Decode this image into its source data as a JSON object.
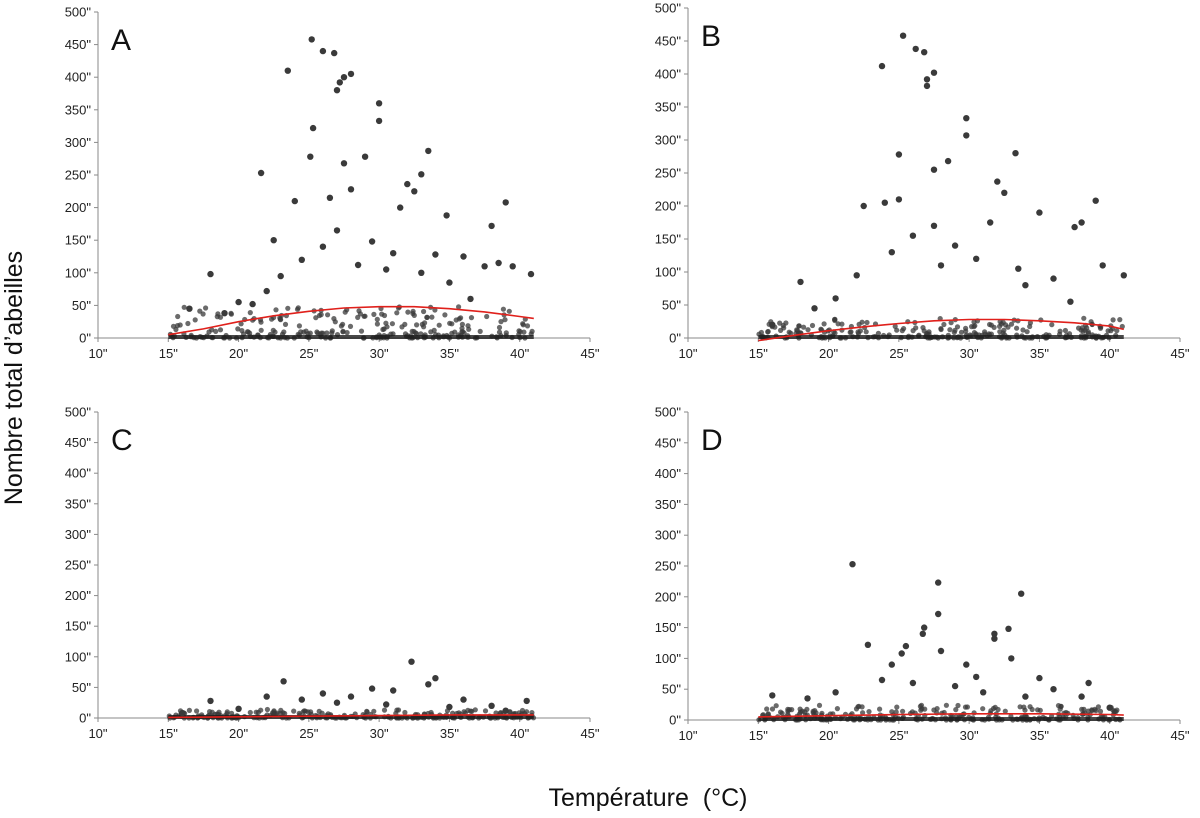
{
  "figure": {
    "ylabel": "Nombre total d’abeilles",
    "xlabel": "Température  (°C)"
  },
  "chart_data": [
    {
      "panel": "A",
      "type": "scatter",
      "xlim": [
        10,
        45
      ],
      "ylim": [
        0,
        500
      ],
      "x_ticks": [
        10,
        15,
        20,
        25,
        30,
        35,
        40,
        45
      ],
      "y_ticks": [
        0,
        50,
        100,
        150,
        200,
        250,
        300,
        350,
        400,
        450,
        500
      ],
      "x_tick_labels": [
        "10\"",
        "15\"",
        "20\"",
        "25\"",
        "30\"",
        "35\"",
        "40\"",
        "45\""
      ],
      "y_tick_labels": [
        "0\"",
        "50\"",
        "100\"",
        "150\"",
        "200\"",
        "250\"",
        "300\"",
        "350\"",
        "400\"",
        "450\"",
        "500\""
      ],
      "grid": false,
      "point_color": "#3a3a3a",
      "trend_color": "#e0201b",
      "trend": {
        "x": [
          15,
          17.5,
          20,
          22.5,
          25,
          27.5,
          30,
          32.5,
          35,
          37.5,
          40,
          41
        ],
        "y": [
          5,
          14,
          25,
          34,
          41,
          46,
          48,
          48,
          45,
          40,
          33,
          30
        ]
      },
      "points": [
        [
          25.2,
          458
        ],
        [
          23.5,
          410
        ],
        [
          26,
          440
        ],
        [
          26.8,
          437
        ],
        [
          27.5,
          400
        ],
        [
          28,
          405
        ],
        [
          27.2,
          392
        ],
        [
          27,
          380
        ],
        [
          30,
          360
        ],
        [
          30,
          333
        ],
        [
          25.3,
          322
        ],
        [
          33.5,
          287
        ],
        [
          29,
          278
        ],
        [
          25.1,
          278
        ],
        [
          21.6,
          253
        ],
        [
          27.5,
          268
        ],
        [
          32,
          236
        ],
        [
          33,
          251
        ],
        [
          32.5,
          225
        ],
        [
          28,
          228
        ],
        [
          31.5,
          200
        ],
        [
          34.8,
          188
        ],
        [
          39,
          208
        ],
        [
          38,
          172
        ],
        [
          24,
          210
        ],
        [
          26.5,
          215
        ],
        [
          22.5,
          150
        ],
        [
          27,
          165
        ],
        [
          18,
          98
        ],
        [
          40.8,
          98
        ],
        [
          37.5,
          110
        ],
        [
          36,
          125
        ],
        [
          20,
          55
        ],
        [
          23,
          95
        ],
        [
          24.5,
          120
        ],
        [
          26,
          140
        ],
        [
          28.5,
          112
        ],
        [
          29.5,
          148
        ],
        [
          31,
          130
        ],
        [
          33,
          100
        ],
        [
          35,
          85
        ],
        [
          36.5,
          60
        ],
        [
          38.5,
          115
        ],
        [
          39.5,
          110
        ],
        [
          16.5,
          45
        ],
        [
          19,
          38
        ],
        [
          21,
          52
        ],
        [
          22,
          72
        ],
        [
          30.5,
          105
        ],
        [
          34,
          128
        ]
      ]
    },
    {
      "panel": "B",
      "type": "scatter",
      "xlim": [
        10,
        45
      ],
      "ylim": [
        0,
        500
      ],
      "x_ticks": [
        10,
        15,
        20,
        25,
        30,
        35,
        40,
        45
      ],
      "y_ticks": [
        0,
        50,
        100,
        150,
        200,
        250,
        300,
        350,
        400,
        450,
        500
      ],
      "x_tick_labels": [
        "10\"",
        "15\"",
        "20\"",
        "25\"",
        "30\"",
        "35\"",
        "40\"",
        "45\""
      ],
      "y_tick_labels": [
        "0\"",
        "50\"",
        "100\"",
        "150\"",
        "200\"",
        "250\"",
        "300\"",
        "350\"",
        "400\"",
        "450\"",
        "500\""
      ],
      "grid": false,
      "point_color": "#3a3a3a",
      "trend_color": "#e0201b",
      "trend": {
        "x": [
          15,
          17.5,
          20,
          22.5,
          25,
          27.5,
          30,
          32.5,
          35,
          37.5,
          40,
          41
        ],
        "y": [
          -4,
          4,
          11,
          17,
          22,
          26,
          28,
          28,
          26,
          23,
          18,
          13
        ]
      },
      "points": [
        [
          25.3,
          458
        ],
        [
          23.8,
          412
        ],
        [
          26.2,
          438
        ],
        [
          26.8,
          433
        ],
        [
          27.5,
          402
        ],
        [
          27,
          392
        ],
        [
          27,
          382
        ],
        [
          29.8,
          333
        ],
        [
          29.8,
          307
        ],
        [
          25,
          278
        ],
        [
          33.3,
          280
        ],
        [
          28.5,
          268
        ],
        [
          27.5,
          255
        ],
        [
          32,
          237
        ],
        [
          32.5,
          220
        ],
        [
          22.5,
          200
        ],
        [
          24,
          205
        ],
        [
          25,
          210
        ],
        [
          35,
          190
        ],
        [
          39,
          208
        ],
        [
          38,
          175
        ],
        [
          37.5,
          168
        ],
        [
          31.5,
          175
        ],
        [
          18,
          85
        ],
        [
          41,
          95
        ],
        [
          22,
          95
        ],
        [
          26,
          155
        ],
        [
          27.5,
          170
        ],
        [
          29,
          140
        ],
        [
          30.5,
          120
        ],
        [
          33.5,
          105
        ],
        [
          36,
          90
        ],
        [
          37.2,
          55
        ],
        [
          39.5,
          110
        ],
        [
          19,
          45
        ],
        [
          20.5,
          60
        ],
        [
          24.5,
          130
        ],
        [
          28,
          110
        ],
        [
          34,
          80
        ],
        [
          16,
          20
        ]
      ]
    },
    {
      "panel": "C",
      "type": "scatter",
      "xlim": [
        10,
        45
      ],
      "ylim": [
        0,
        500
      ],
      "x_ticks": [
        10,
        15,
        20,
        25,
        30,
        35,
        40,
        45
      ],
      "y_ticks": [
        0,
        50,
        100,
        150,
        200,
        250,
        300,
        350,
        400,
        450,
        500
      ],
      "x_tick_labels": [
        "10\"",
        "15\"",
        "20\"",
        "25\"",
        "30\"",
        "35\"",
        "40\"",
        "45\""
      ],
      "y_tick_labels": [
        "0\"",
        "50\"",
        "100\"",
        "150\"",
        "200\"",
        "250\"",
        "300\"",
        "350\"",
        "400\"",
        "450\"",
        "500\""
      ],
      "grid": false,
      "point_color": "#3a3a3a",
      "trend_color": "#e0201b",
      "trend": {
        "x": [
          15,
          20,
          25,
          30,
          35,
          40,
          41
        ],
        "y": [
          1,
          2,
          3,
          4,
          5,
          5,
          5
        ]
      },
      "points": [
        [
          32.3,
          92
        ],
        [
          23.2,
          60
        ],
        [
          34,
          65
        ],
        [
          33.5,
          55
        ],
        [
          26,
          40
        ],
        [
          29.5,
          48
        ],
        [
          31,
          45
        ],
        [
          22,
          35
        ],
        [
          18,
          28
        ],
        [
          28,
          35
        ],
        [
          36,
          30
        ],
        [
          38,
          20
        ],
        [
          40.5,
          28
        ],
        [
          24.5,
          30
        ],
        [
          27,
          25
        ],
        [
          30.5,
          22
        ],
        [
          20,
          15
        ],
        [
          16,
          8
        ],
        [
          35,
          18
        ],
        [
          39,
          12
        ]
      ]
    },
    {
      "panel": "D",
      "type": "scatter",
      "xlim": [
        10,
        45
      ],
      "ylim": [
        0,
        500
      ],
      "x_ticks": [
        10,
        15,
        20,
        25,
        30,
        35,
        40,
        45
      ],
      "y_ticks": [
        0,
        50,
        100,
        150,
        200,
        250,
        300,
        350,
        400,
        450,
        500
      ],
      "x_tick_labels": [
        "10\"",
        "15\"",
        "20\"",
        "25\"",
        "30\"",
        "35\"",
        "40\"",
        "45\""
      ],
      "y_tick_labels": [
        "0\"",
        "50\"",
        "100\"",
        "150\"",
        "200\"",
        "250\"",
        "300\"",
        "350\"",
        "400\"",
        "450\"",
        "500\""
      ],
      "grid": false,
      "point_color": "#3a3a3a",
      "trend_color": "#e0201b",
      "trend": {
        "x": [
          15,
          20,
          25,
          30,
          35,
          40,
          41
        ],
        "y": [
          5,
          7,
          9,
          10,
          10,
          9,
          8
        ]
      },
      "points": [
        [
          21.7,
          253
        ],
        [
          27.8,
          223
        ],
        [
          33.7,
          205
        ],
        [
          27.8,
          172
        ],
        [
          26.8,
          150
        ],
        [
          26.7,
          140
        ],
        [
          31.8,
          140
        ],
        [
          31.8,
          132
        ],
        [
          32.8,
          148
        ],
        [
          22.8,
          122
        ],
        [
          25.5,
          120
        ],
        [
          25.2,
          108
        ],
        [
          28,
          112
        ],
        [
          24.5,
          90
        ],
        [
          29.8,
          90
        ],
        [
          33,
          100
        ],
        [
          23.8,
          65
        ],
        [
          30.5,
          70
        ],
        [
          35,
          68
        ],
        [
          36,
          50
        ],
        [
          38.5,
          60
        ],
        [
          38,
          38
        ],
        [
          16,
          40
        ],
        [
          18.5,
          35
        ],
        [
          20.5,
          45
        ],
        [
          26,
          60
        ],
        [
          29,
          55
        ],
        [
          31,
          45
        ],
        [
          34,
          38
        ],
        [
          40,
          20
        ]
      ]
    }
  ]
}
